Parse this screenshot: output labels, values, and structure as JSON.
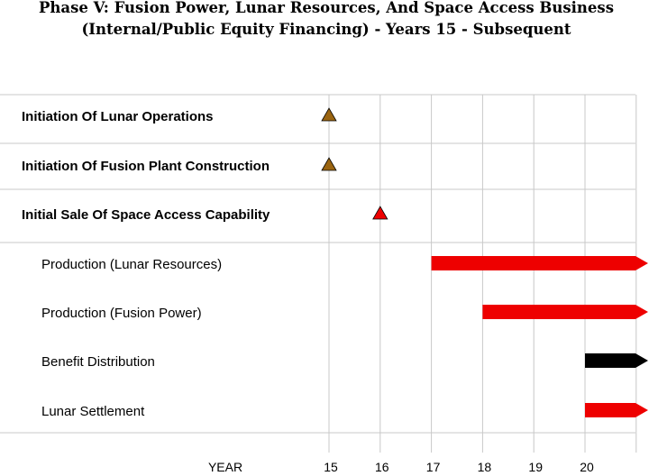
{
  "title_line1": "Phase V: Fusion Power, Lunar Resources, And Space Access Business",
  "title_line2": "(Internal/Public Equity Financing) - Years 15 - Subsequent",
  "chart_data": {
    "type": "gantt",
    "xlabel": "YEAR",
    "x_ticks": [
      15,
      16,
      17,
      18,
      19,
      20
    ],
    "xlim": [
      13.4,
      21
    ],
    "milestones": [
      {
        "label": "Initiation Of Lunar Operations",
        "year": 15,
        "color": "#9a6410"
      },
      {
        "label": "Initiation Of Fusion Plant Construction",
        "year": 15,
        "color": "#9a6410"
      },
      {
        "label": "Initial Sale Of Space Access Capability",
        "year": 16,
        "color": "#ee0000"
      }
    ],
    "tasks": [
      {
        "label": "Production (Lunar Resources)",
        "start": 17,
        "end": "subsequent",
        "color": "#ee0000"
      },
      {
        "label": "Production (Fusion Power)",
        "start": 18,
        "end": "subsequent",
        "color": "#ee0000"
      },
      {
        "label": "Benefit Distribution",
        "start": 20,
        "end": "subsequent",
        "color": "#000000"
      },
      {
        "label": "Lunar Settlement",
        "start": 20,
        "end": "subsequent",
        "color": "#ee0000"
      }
    ]
  }
}
